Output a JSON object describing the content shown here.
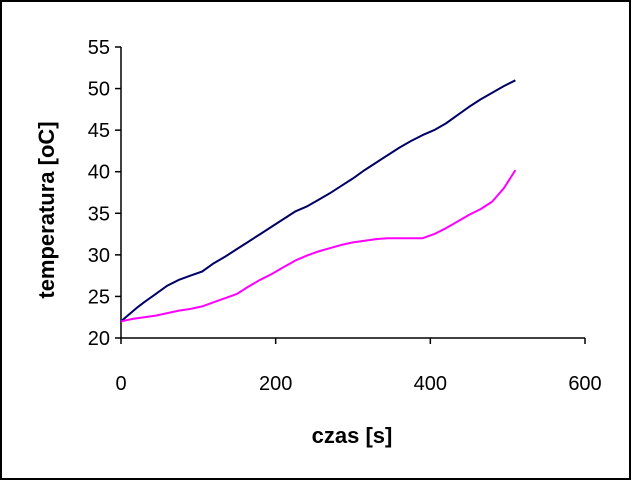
{
  "chart_data": {
    "type": "line",
    "title": "",
    "xlabel": "czas [s]",
    "ylabel": "temperatura [oC]",
    "xlim": [
      0,
      600
    ],
    "ylim": [
      20,
      55
    ],
    "xticks": [
      0,
      200,
      400,
      600
    ],
    "yticks": [
      20,
      25,
      30,
      35,
      40,
      45,
      50,
      55
    ],
    "grid": false,
    "legend": "none",
    "series": [
      {
        "name": "series-1",
        "color": "#000066",
        "x": [
          0,
          10,
          20,
          30,
          45,
          60,
          75,
          90,
          105,
          120,
          135,
          150,
          165,
          180,
          195,
          210,
          225,
          240,
          255,
          270,
          285,
          300,
          315,
          330,
          345,
          360,
          375,
          390,
          405,
          420,
          435,
          450,
          465,
          480,
          495,
          510
        ],
        "y": [
          22,
          22.8,
          23.6,
          24.3,
          25.3,
          26.3,
          27.0,
          27.5,
          28.0,
          29.0,
          29.8,
          30.7,
          31.6,
          32.5,
          33.4,
          34.3,
          35.2,
          35.8,
          36.6,
          37.4,
          38.3,
          39.2,
          40.2,
          41.1,
          42.0,
          42.9,
          43.7,
          44.4,
          45.0,
          45.8,
          46.8,
          47.8,
          48.7,
          49.5,
          50.3,
          51.0
        ]
      },
      {
        "name": "series-2",
        "color": "#ff00ff",
        "x": [
          0,
          15,
          30,
          45,
          60,
          75,
          90,
          105,
          120,
          135,
          150,
          165,
          180,
          195,
          210,
          225,
          240,
          255,
          270,
          285,
          300,
          315,
          330,
          345,
          360,
          375,
          390,
          405,
          420,
          435,
          450,
          465,
          480,
          495,
          510
        ],
        "y": [
          22,
          22.3,
          22.5,
          22.7,
          23.0,
          23.3,
          23.5,
          23.8,
          24.3,
          24.8,
          25.3,
          26.2,
          27.0,
          27.7,
          28.5,
          29.3,
          29.9,
          30.4,
          30.8,
          31.2,
          31.5,
          31.7,
          31.9,
          32.0,
          32.0,
          32.0,
          32.0,
          32.5,
          33.2,
          34.0,
          34.8,
          35.5,
          36.4,
          38.0,
          40.2
        ]
      }
    ]
  }
}
